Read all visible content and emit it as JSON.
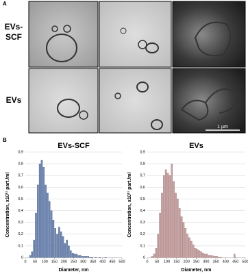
{
  "panel_a": {
    "label": "A",
    "rows": [
      [
        "EVs-",
        "SCF"
      ],
      [
        "EVs"
      ]
    ],
    "scale_bar": "1 µm"
  },
  "panel_b": {
    "label": "B"
  },
  "chart_data": [
    {
      "type": "histogram",
      "title": "EVs-SCF",
      "x_label": "Diameter, nm",
      "y_label": "Concentration, x10¹¹ part./ml",
      "color": "#7088b5",
      "edge_color": "#3d4f75",
      "bins": [
        20,
        30,
        40,
        50,
        60,
        70,
        80,
        90,
        100,
        110,
        120,
        130,
        140,
        150,
        160,
        170,
        180,
        190,
        200,
        210,
        220,
        230,
        240,
        250,
        260,
        270,
        280,
        290,
        300,
        310,
        320,
        330,
        340,
        350,
        360,
        370,
        380,
        390,
        400,
        410,
        420
      ],
      "values": [
        0.02,
        0.05,
        0.15,
        0.38,
        0.62,
        0.8,
        0.83,
        0.77,
        0.62,
        0.55,
        0.48,
        0.4,
        0.32,
        0.25,
        0.2,
        0.26,
        0.22,
        0.18,
        0.12,
        0.15,
        0.1,
        0.06,
        0.04,
        0.03,
        0.03,
        0.02,
        0.02,
        0.01,
        0.01,
        0.01,
        0.01,
        0.005,
        0.005,
        0,
        0.005,
        0,
        0.005,
        0,
        0,
        0.005
      ],
      "xlim": [
        0,
        500
      ],
      "xticks": [
        0,
        50,
        100,
        150,
        200,
        250,
        300,
        350,
        400,
        450,
        500
      ],
      "ylim": [
        0,
        0.9
      ],
      "yticks": [
        0,
        {
          "value": 0.1,
          "label": "0,1"
        },
        {
          "value": 0.2,
          "label": "0,2"
        },
        {
          "value": 0.3,
          "label": "0,3"
        },
        {
          "value": 0.4,
          "label": "0,4"
        },
        {
          "value": 0.5,
          "label": "0,5"
        },
        {
          "value": 0.6,
          "label": "0,6"
        },
        {
          "value": 0.7,
          "label": "0,7"
        },
        {
          "value": 0.8,
          "label": "0,8"
        },
        {
          "value": 0.9,
          "label": "0,9"
        }
      ],
      "grid": true
    },
    {
      "type": "histogram",
      "title": "EVs",
      "x_label": "Diameter, nm",
      "y_label": "Concentration, x10¹¹ part./ml",
      "color": "#c9a4a4",
      "edge_color": "#8a6060",
      "bins": [
        20,
        30,
        40,
        50,
        60,
        70,
        80,
        90,
        100,
        110,
        120,
        130,
        140,
        150,
        160,
        170,
        180,
        190,
        200,
        210,
        220,
        230,
        240,
        250,
        260,
        270,
        280,
        290,
        300,
        310,
        320,
        330,
        340,
        350,
        360,
        370,
        380,
        390,
        400,
        410,
        420,
        430,
        440,
        450
      ],
      "values": [
        0.01,
        0.03,
        0.08,
        0.2,
        0.38,
        0.55,
        0.7,
        0.75,
        0.72,
        0.7,
        0.8,
        0.65,
        0.55,
        0.5,
        0.42,
        0.35,
        0.3,
        0.25,
        0.2,
        0.17,
        0.14,
        0.11,
        0.08,
        0.07,
        0.06,
        0.05,
        0.04,
        0.03,
        0.03,
        0.02,
        0.02,
        0.015,
        0.01,
        0.01,
        0.005,
        0.005,
        0,
        0,
        0,
        0,
        0,
        0,
        0.03
      ],
      "xlim": [
        0,
        500
      ],
      "xticks": [
        0,
        50,
        100,
        150,
        200,
        250,
        300,
        350,
        400,
        450,
        500
      ],
      "ylim": [
        0,
        0.9
      ],
      "yticks": [
        0,
        {
          "value": 0.1,
          "label": "0,1"
        },
        {
          "value": 0.2,
          "label": "0,2"
        },
        {
          "value": 0.3,
          "label": "0,3"
        },
        {
          "value": 0.4,
          "label": "0,4"
        },
        {
          "value": 0.5,
          "label": "0,5"
        },
        {
          "value": 0.6,
          "label": "0,6"
        },
        {
          "value": 0.7,
          "label": "0,7"
        },
        {
          "value": 0.8,
          "label": "0,8"
        },
        {
          "value": 0.9,
          "label": "0,9"
        }
      ],
      "grid": true
    }
  ]
}
